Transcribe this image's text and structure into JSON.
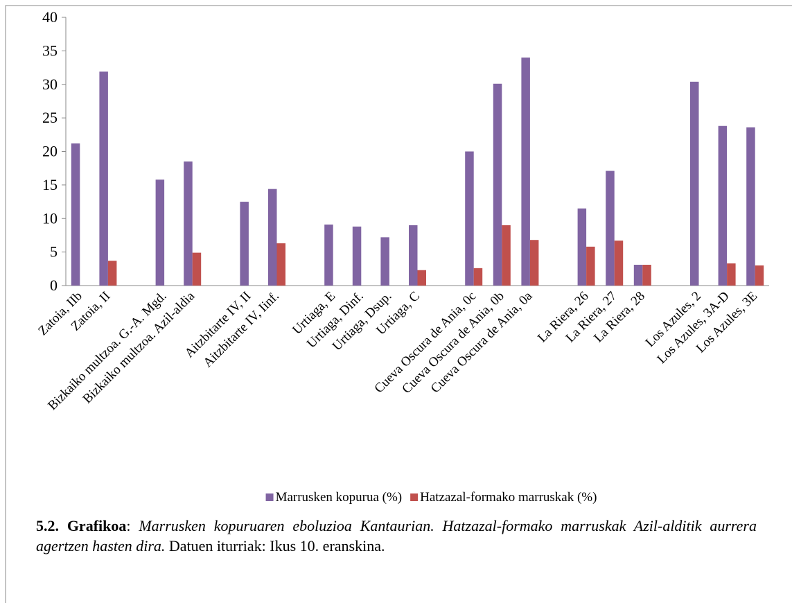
{
  "chart_data": {
    "type": "bar",
    "categories": [
      "Zatoia, IIb",
      "Zatoia, II",
      null,
      "Bizkaiko multzoa. G.-A. Mgd.",
      "Bizkaiko multzoa. Azil-aldia",
      null,
      "Aitzbitarte IV, II",
      "Aitzbitarte IV, Iinf.",
      null,
      "Urtiaga, E",
      "Urtiaga, Dinf.",
      "Urtiaga, Dsup.",
      "Urtiaga, C",
      null,
      "Cueva Oscura de Ania, 0c",
      "Cueva Oscura de Ania, 0b",
      "Cueva Oscura de Ania, 0a",
      null,
      "La Riera, 26",
      "La Riera, 27",
      "La Riera, 28",
      null,
      "Los Azules, 2",
      "Los Azules, 3A-D",
      "Los Azules, 3E"
    ],
    "series": [
      {
        "name": "Marrusken kopurua (%)",
        "color": "#8064a2",
        "values": [
          21.2,
          31.9,
          null,
          15.8,
          18.5,
          null,
          12.5,
          14.4,
          null,
          9.1,
          8.8,
          7.2,
          9.0,
          null,
          20.0,
          30.1,
          34.0,
          null,
          11.5,
          17.1,
          3.1,
          null,
          30.4,
          23.8,
          23.6
        ]
      },
      {
        "name": "Hatzazal-formako marruskak (%)",
        "color": "#c0504d",
        "values": [
          null,
          3.7,
          null,
          null,
          4.9,
          null,
          null,
          6.3,
          null,
          null,
          null,
          null,
          2.3,
          null,
          2.6,
          9.0,
          6.8,
          null,
          5.8,
          6.7,
          3.1,
          null,
          null,
          3.3,
          3.0
        ]
      }
    ],
    "ylim": [
      0,
      40
    ],
    "yticks": [
      0,
      5,
      10,
      15,
      20,
      25,
      30,
      35,
      40
    ],
    "grid": false,
    "legend": "bottom",
    "caption": {
      "label": "5.2. Grafikoa",
      "separator": ":",
      "italic": "Marrusken kopuruaren eboluzioa Kantaurian. Hatzazal-formako marruskak Azil-alditik aurrera agertzen hasten dira.",
      "source": "Datuen iturriak: Ikus 10. eranskina."
    }
  }
}
